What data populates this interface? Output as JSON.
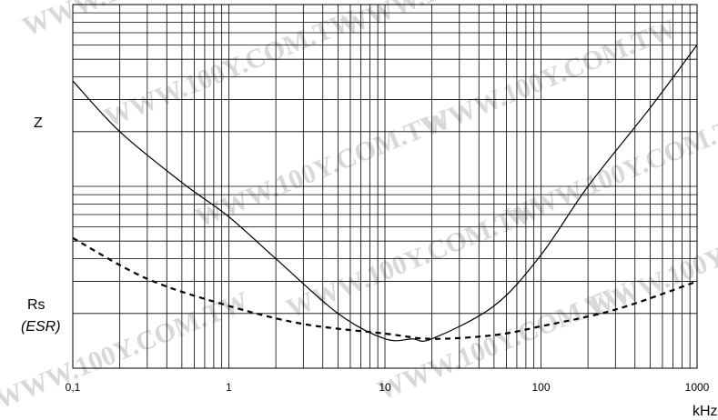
{
  "chart_data": {
    "type": "line",
    "title": "",
    "xlabel": "kHz",
    "x_scale": "log",
    "xlim": [
      0.1,
      1000
    ],
    "x_ticks": [
      "0,1",
      "1",
      "10",
      "100",
      "1000"
    ],
    "y_scale": "log",
    "y_labels": {
      "impedance": "Z",
      "esr_line1": "Rs",
      "esr_line2": "(ESR)"
    },
    "grid": true,
    "series": [
      {
        "name": "Z",
        "style": "solid",
        "x": [
          0.1,
          0.2,
          0.5,
          1,
          2,
          5,
          10,
          15,
          20,
          50,
          100,
          200,
          500,
          1000
        ],
        "y_rel": [
          0.38,
          0.2,
          0.105,
          0.068,
          0.04,
          0.02,
          0.0145,
          0.0145,
          0.0145,
          0.022,
          0.042,
          0.1,
          0.27,
          0.6
        ]
      },
      {
        "name": "Rs (ESR)",
        "style": "dashed",
        "x": [
          0.1,
          0.3,
          1,
          3,
          10,
          20,
          50,
          100,
          300,
          1000
        ],
        "y_rel": [
          0.052,
          0.031,
          0.022,
          0.0175,
          0.0155,
          0.0145,
          0.0152,
          0.017,
          0.021,
          0.03
        ]
      }
    ]
  },
  "watermark": "WWW.100Y.COM.TW"
}
